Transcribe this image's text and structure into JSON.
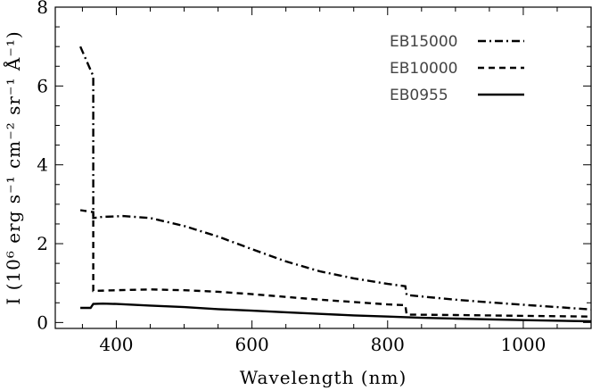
{
  "chart_data": {
    "type": "line",
    "xlabel": "Wavelength (nm)",
    "ylabel": "I (10⁶ erg s⁻¹ cm⁻² sr⁻¹ Å⁻¹)",
    "xlim": [
      310,
      1100
    ],
    "ylim": [
      -0.15,
      8
    ],
    "x_ticks": [
      400,
      600,
      800,
      1000
    ],
    "y_ticks": [
      0,
      2,
      4,
      6,
      8
    ],
    "grid": false,
    "legend_position": "top-right",
    "series": [
      {
        "name": "EB15000",
        "style": "dashdot",
        "points": [
          [
            347,
            7.0
          ],
          [
            366,
            6.25
          ],
          [
            366,
            2.65
          ],
          [
            380,
            2.68
          ],
          [
            410,
            2.7
          ],
          [
            450,
            2.65
          ],
          [
            500,
            2.45
          ],
          [
            550,
            2.18
          ],
          [
            600,
            1.86
          ],
          [
            650,
            1.55
          ],
          [
            700,
            1.3
          ],
          [
            750,
            1.12
          ],
          [
            800,
            0.98
          ],
          [
            826,
            0.92
          ],
          [
            828,
            0.7
          ],
          [
            850,
            0.66
          ],
          [
            900,
            0.58
          ],
          [
            950,
            0.51
          ],
          [
            1000,
            0.45
          ],
          [
            1050,
            0.39
          ],
          [
            1100,
            0.33
          ]
        ]
      },
      {
        "name": "EB10000",
        "style": "dashed",
        "points": [
          [
            347,
            2.85
          ],
          [
            366,
            2.8
          ],
          [
            366,
            0.8
          ],
          [
            400,
            0.82
          ],
          [
            450,
            0.84
          ],
          [
            500,
            0.82
          ],
          [
            550,
            0.78
          ],
          [
            600,
            0.72
          ],
          [
            650,
            0.65
          ],
          [
            700,
            0.58
          ],
          [
            750,
            0.52
          ],
          [
            800,
            0.46
          ],
          [
            826,
            0.44
          ],
          [
            828,
            0.2
          ],
          [
            900,
            0.19
          ],
          [
            1000,
            0.17
          ],
          [
            1100,
            0.15
          ]
        ]
      },
      {
        "name": "EB0955",
        "style": "solid",
        "points": [
          [
            347,
            0.37
          ],
          [
            362,
            0.37
          ],
          [
            366,
            0.47
          ],
          [
            380,
            0.48
          ],
          [
            400,
            0.47
          ],
          [
            450,
            0.43
          ],
          [
            500,
            0.39
          ],
          [
            550,
            0.34
          ],
          [
            600,
            0.3
          ],
          [
            650,
            0.26
          ],
          [
            700,
            0.22
          ],
          [
            750,
            0.18
          ],
          [
            800,
            0.15
          ],
          [
            850,
            0.12
          ],
          [
            900,
            0.1
          ],
          [
            1000,
            0.06
          ],
          [
            1100,
            0.03
          ]
        ]
      }
    ]
  }
}
